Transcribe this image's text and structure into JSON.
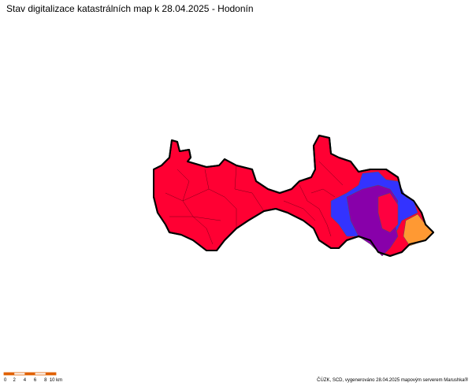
{
  "title": "Stav digitalizace katastrálních map k 28.04.2025 - Hodonín",
  "scalebar": {
    "labels": [
      "0",
      "2",
      "4",
      "6",
      "8",
      "10 km"
    ]
  },
  "credit": "ČÚZK, SCD, vygenerováno 28.04.2025 mapovým serverem Marushka®"
}
